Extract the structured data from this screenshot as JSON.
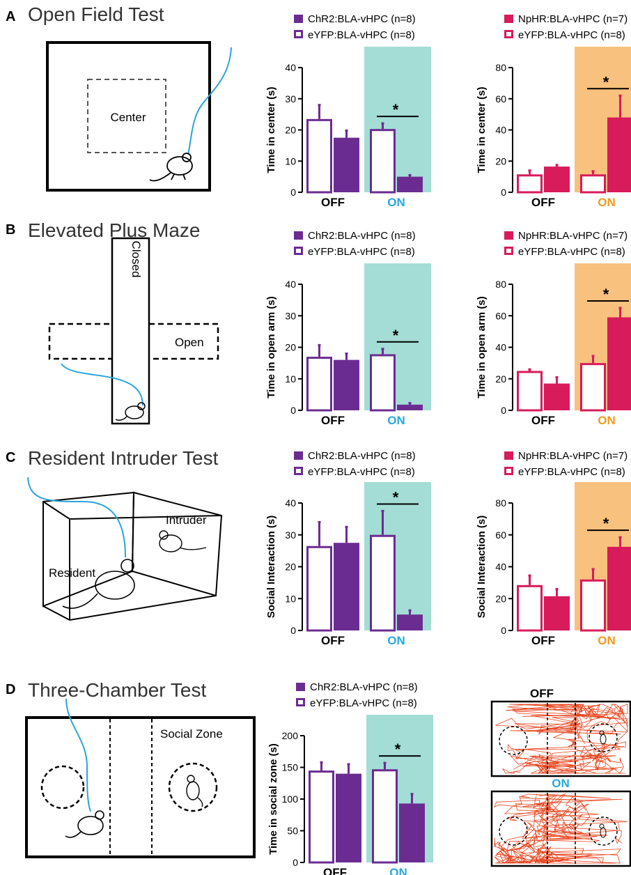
{
  "colors": {
    "purple": "#6B2C91",
    "crimson": "#D81B5A",
    "teal": "#A3DDD6",
    "orange": "#F8C17E",
    "cyan_text": "#29A8E0",
    "orange_text": "#F39A1E",
    "trace": "#E8451E",
    "fiber": "#2BA4DB"
  },
  "panels": [
    {
      "letter": "A",
      "title": "Open Field Test",
      "apparatus_labels": [
        "Center"
      ]
    },
    {
      "letter": "B",
      "title": "Elevated Plus Maze",
      "apparatus_labels": [
        "Closed",
        "Open"
      ]
    },
    {
      "letter": "C",
      "title": "Resident Intruder Test",
      "apparatus_labels": [
        "Intruder",
        "Resident"
      ]
    },
    {
      "letter": "D",
      "title": "Three-Chamber Test",
      "apparatus_labels": [
        "Social Zone"
      ]
    }
  ],
  "legends": {
    "chr2": {
      "filled": "ChR2:BLA-vHPC (n=8)",
      "open": "eYFP:BLA-vHPC (n=8)"
    },
    "nphr": {
      "filled": "NpHR:BLA-vHPC (n=7)",
      "open": "eYFP:BLA-vHPC (n=8)"
    }
  },
  "tracks": {
    "off_label": "OFF",
    "on_label": "ON"
  },
  "chart_data": [
    {
      "id": "A-chr2",
      "type": "bar",
      "group": "chr2",
      "categories": [
        "OFF",
        "ON"
      ],
      "ylabel": "Time in center (s)",
      "ylim": [
        0,
        40
      ],
      "yticks": [
        0,
        10,
        20,
        30,
        40
      ],
      "series": [
        {
          "name": "eYFP:BLA-vHPC (n=8)",
          "style": "open",
          "values": [
            23.5,
            20.3
          ],
          "errors": [
            4.5,
            1.8
          ]
        },
        {
          "name": "ChR2:BLA-vHPC (n=8)",
          "style": "filled",
          "values": [
            17.5,
            5.0
          ],
          "errors": [
            2.3,
            0.5
          ]
        }
      ],
      "significance": {
        "category": "ON",
        "label": "*"
      }
    },
    {
      "id": "A-nphr",
      "type": "bar",
      "group": "nphr",
      "categories": [
        "OFF",
        "ON"
      ],
      "ylabel": "Time in center (s)",
      "ylim": [
        0,
        80
      ],
      "yticks": [
        0,
        20,
        40,
        60,
        80
      ],
      "series": [
        {
          "name": "eYFP:BLA-vHPC (n=8)",
          "style": "open",
          "values": [
            11.5,
            11.5
          ],
          "errors": [
            2.5,
            2.0
          ]
        },
        {
          "name": "NpHR:BLA-vHPC (n=7)",
          "style": "filled",
          "values": [
            16.5,
            48.0
          ],
          "errors": [
            1.0,
            14.0
          ]
        }
      ],
      "significance": {
        "category": "ON",
        "label": "*"
      }
    },
    {
      "id": "B-chr2",
      "type": "bar",
      "group": "chr2",
      "categories": [
        "OFF",
        "ON"
      ],
      "ylabel": "Time in open arm (s)",
      "ylim": [
        0,
        40
      ],
      "yticks": [
        0,
        10,
        20,
        30,
        40
      ],
      "series": [
        {
          "name": "eYFP:BLA-vHPC (n=8)",
          "style": "open",
          "values": [
            17.0,
            17.8
          ],
          "errors": [
            3.7,
            1.7
          ]
        },
        {
          "name": "ChR2:BLA-vHPC (n=8)",
          "style": "filled",
          "values": [
            16.0,
            1.8
          ],
          "errors": [
            2.0,
            0.5
          ]
        }
      ],
      "significance": {
        "category": "ON",
        "label": "*"
      }
    },
    {
      "id": "B-nphr",
      "type": "bar",
      "group": "nphr",
      "categories": [
        "OFF",
        "ON"
      ],
      "ylabel": "Time in open arm (s)",
      "ylim": [
        0,
        80
      ],
      "yticks": [
        0,
        20,
        40,
        60,
        80
      ],
      "series": [
        {
          "name": "eYFP:BLA-vHPC (n=8)",
          "style": "open",
          "values": [
            25.0,
            30.0
          ],
          "errors": [
            1.0,
            4.5
          ]
        },
        {
          "name": "NpHR:BLA-vHPC (n=7)",
          "style": "filled",
          "values": [
            17.0,
            59.0
          ],
          "errors": [
            4.0,
            6.0
          ]
        }
      ],
      "significance": {
        "category": "ON",
        "label": "*"
      }
    },
    {
      "id": "C-chr2",
      "type": "bar",
      "group": "chr2",
      "categories": [
        "OFF",
        "ON"
      ],
      "ylabel": "Social Interaction (s)",
      "ylim": [
        0,
        40
      ],
      "yticks": [
        0,
        10,
        20,
        30,
        40
      ],
      "series": [
        {
          "name": "eYFP:BLA-vHPC (n=8)",
          "style": "open",
          "values": [
            26.5,
            30.0
          ],
          "errors": [
            7.5,
            7.5
          ]
        },
        {
          "name": "ChR2:BLA-vHPC (n=8)",
          "style": "filled",
          "values": [
            27.5,
            5.0
          ],
          "errors": [
            5.0,
            1.3
          ]
        }
      ],
      "significance": {
        "category": "ON",
        "label": "*"
      }
    },
    {
      "id": "C-nphr",
      "type": "bar",
      "group": "nphr",
      "categories": [
        "OFF",
        "ON"
      ],
      "ylabel": "Social Interaction (s)",
      "ylim": [
        0,
        80
      ],
      "yticks": [
        0,
        20,
        40,
        60,
        80
      ],
      "series": [
        {
          "name": "eYFP:BLA-vHPC (n=8)",
          "style": "open",
          "values": [
            28.5,
            32.0
          ],
          "errors": [
            6.0,
            6.5
          ]
        },
        {
          "name": "NpHR:BLA-vHPC (n=7)",
          "style": "filled",
          "values": [
            21.5,
            52.5
          ],
          "errors": [
            4.5,
            6.0
          ]
        }
      ],
      "significance": {
        "category": "ON",
        "label": "*"
      }
    },
    {
      "id": "D-chr2",
      "type": "bar",
      "group": "chr2",
      "categories": [
        "OFF",
        "ON"
      ],
      "ylabel": "Time in social zone (s)",
      "ylim": [
        0,
        200
      ],
      "yticks": [
        0,
        50,
        100,
        150,
        200
      ],
      "series": [
        {
          "name": "eYFP:BLA-vHPC (n=8)",
          "style": "open",
          "values": [
            145,
            147
          ],
          "errors": [
            13,
            10
          ]
        },
        {
          "name": "ChR2:BLA-vHPC (n=8)",
          "style": "filled",
          "values": [
            140,
            93
          ],
          "errors": [
            15,
            15
          ]
        }
      ],
      "significance": {
        "category": "ON",
        "label": "*"
      }
    }
  ]
}
